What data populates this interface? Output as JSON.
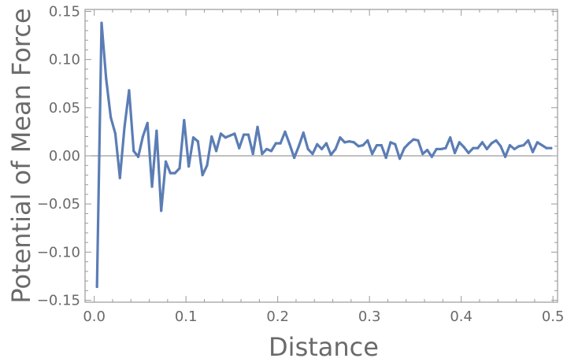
{
  "chart_data": {
    "type": "line",
    "title": "",
    "xlabel": "Distance",
    "ylabel": "Potential of Mean Force",
    "xlim": [
      -0.01,
      0.505
    ],
    "ylim": [
      -0.152,
      0.152
    ],
    "x_ticks": [
      0.0,
      0.1,
      0.2,
      0.3,
      0.4,
      0.5
    ],
    "x_tick_labels": [
      "0.0",
      "0.1",
      "0.2",
      "0.3",
      "0.4",
      "0.5"
    ],
    "y_ticks": [
      -0.15,
      -0.1,
      -0.05,
      0.0,
      0.05,
      0.1,
      0.15
    ],
    "y_tick_labels": [
      "−0.15",
      "−0.10",
      "−0.05",
      "0.00",
      "0.05",
      "0.10",
      "0.15"
    ],
    "grid": false,
    "legend": "none",
    "series": [
      {
        "color": "#5b7db5",
        "x": [
          0.003,
          0.008,
          0.013,
          0.018,
          0.023,
          0.028,
          0.033,
          0.038,
          0.043,
          0.048,
          0.053,
          0.058,
          0.063,
          0.068,
          0.073,
          0.078,
          0.083,
          0.088,
          0.093,
          0.098,
          0.103,
          0.108,
          0.113,
          0.118,
          0.123,
          0.128,
          0.133,
          0.138,
          0.143,
          0.148,
          0.153,
          0.158,
          0.163,
          0.168,
          0.173,
          0.178,
          0.183,
          0.188,
          0.193,
          0.198,
          0.203,
          0.208,
          0.213,
          0.218,
          0.223,
          0.228,
          0.233,
          0.238,
          0.243,
          0.248,
          0.253,
          0.258,
          0.263,
          0.268,
          0.273,
          0.278,
          0.283,
          0.288,
          0.293,
          0.298,
          0.303,
          0.308,
          0.313,
          0.318,
          0.323,
          0.328,
          0.333,
          0.338,
          0.343,
          0.348,
          0.353,
          0.358,
          0.363,
          0.368,
          0.373,
          0.378,
          0.383,
          0.388,
          0.393,
          0.398,
          0.403,
          0.408,
          0.413,
          0.418,
          0.423,
          0.428,
          0.433,
          0.438,
          0.443,
          0.448,
          0.453,
          0.458,
          0.463,
          0.468,
          0.473,
          0.478,
          0.483,
          0.488,
          0.493,
          0.498
        ],
        "y": [
          -0.136,
          0.138,
          0.08,
          0.04,
          0.023,
          -0.023,
          0.03,
          0.068,
          0.005,
          -0.001,
          0.02,
          0.034,
          -0.032,
          0.026,
          -0.057,
          -0.006,
          -0.018,
          -0.018,
          -0.013,
          0.037,
          -0.011,
          0.019,
          0.015,
          -0.02,
          -0.01,
          0.02,
          0.005,
          0.023,
          0.019,
          0.021,
          0.023,
          0.008,
          0.022,
          0.022,
          0.002,
          0.03,
          0.002,
          0.007,
          0.005,
          0.013,
          0.013,
          0.025,
          0.012,
          -0.002,
          0.01,
          0.024,
          0.007,
          0.002,
          0.012,
          0.007,
          0.013,
          0.001,
          0.007,
          0.019,
          0.014,
          0.015,
          0.014,
          0.01,
          0.011,
          0.016,
          0.002,
          0.011,
          0.011,
          -0.002,
          0.014,
          0.012,
          -0.003,
          0.008,
          0.013,
          0.017,
          0.016,
          0.002,
          0.006,
          -0.001,
          0.007,
          0.007,
          0.008,
          0.019,
          0.003,
          0.014,
          0.009,
          0.003,
          0.008,
          0.008,
          0.014,
          0.007,
          0.013,
          0.016,
          0.01,
          -0.001,
          0.011,
          0.007,
          0.01,
          0.011,
          0.016,
          0.004,
          0.014,
          0.011,
          0.008,
          0.008
        ]
      }
    ]
  }
}
